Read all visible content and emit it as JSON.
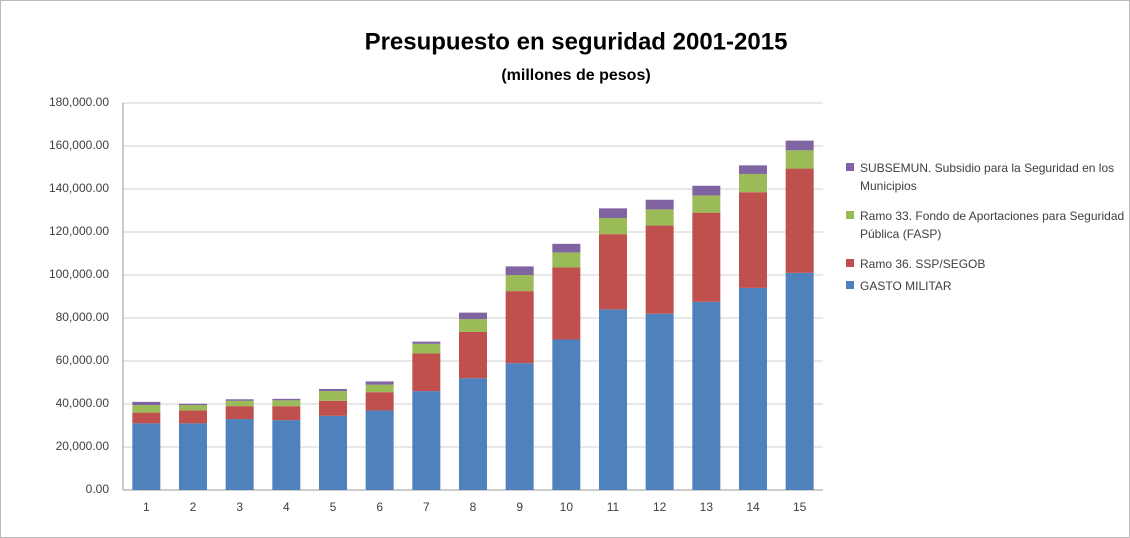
{
  "chart_data": {
    "type": "stacked_bar",
    "title": "Presupuesto en seguridad 2001-2015",
    "subtitle": "(millones de pesos)",
    "categories": [
      "1",
      "2",
      "3",
      "4",
      "5",
      "6",
      "7",
      "8",
      "9",
      "10",
      "11",
      "12",
      "13",
      "14",
      "15"
    ],
    "series": [
      {
        "name": "GASTO MILITAR",
        "color": "#4f81bd",
        "values": [
          31000,
          31000,
          33000,
          32500,
          34500,
          37000,
          46000,
          52000,
          59000,
          70000,
          84000,
          82000,
          87500,
          94000,
          101000
        ]
      },
      {
        "name": "Ramo 36. SSP/SEGOB",
        "color": "#c0504d",
        "values": [
          5000,
          6000,
          6000,
          6500,
          7000,
          8500,
          17500,
          21500,
          33500,
          33500,
          35000,
          41000,
          41500,
          44500,
          48500
        ]
      },
      {
        "name": "Ramo 33.  Fondo de Aportaciones para Seguridad Pública (FASP)",
        "color": "#9bbb59",
        "values": [
          3500,
          2500,
          2500,
          2700,
          4500,
          3500,
          4500,
          6000,
          7500,
          7000,
          7500,
          7500,
          8000,
          8500,
          8500
        ]
      },
      {
        "name": "SUBSEMUN. Subsidio para la Seguridad en los Municipios",
        "color": "#8064a2",
        "values": [
          1500,
          600,
          700,
          700,
          1000,
          1500,
          1000,
          3000,
          4000,
          4000,
          4500,
          4500,
          4500,
          4000,
          4500
        ]
      }
    ],
    "ylim": [
      0,
      180000
    ],
    "yticks": [
      {
        "value": 0,
        "label": "0.00"
      },
      {
        "value": 20000,
        "label": "20,000.00"
      },
      {
        "value": 40000,
        "label": "40,000.00"
      },
      {
        "value": 60000,
        "label": "60,000.00"
      },
      {
        "value": 80000,
        "label": "80,000.00"
      },
      {
        "value": 100000,
        "label": "100,000.00"
      },
      {
        "value": 120000,
        "label": "120,000.00"
      },
      {
        "value": 140000,
        "label": "140,000.00"
      },
      {
        "value": 160000,
        "label": "160,000.00"
      },
      {
        "value": 180000,
        "label": "180,000.00"
      }
    ],
    "grid": true,
    "legend": "right"
  }
}
